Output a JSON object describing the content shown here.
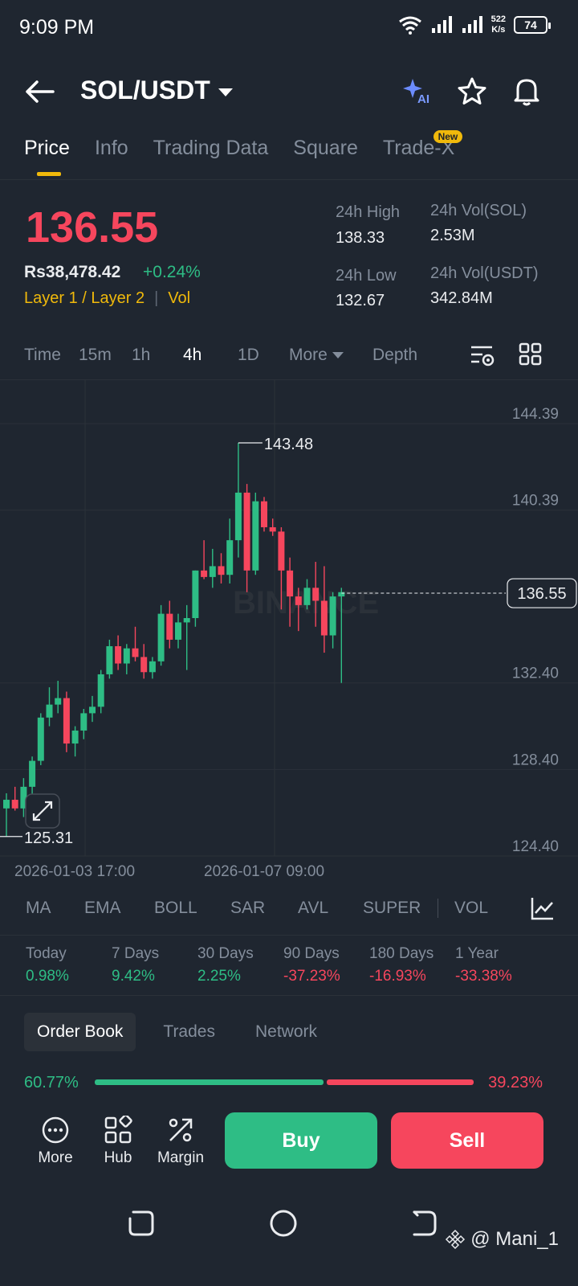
{
  "status_bar": {
    "time": "9:09 PM",
    "net_speed_value": "522",
    "net_speed_unit": "K/s",
    "battery": "74"
  },
  "header": {
    "pair": "SOL/USDT",
    "icons": [
      "back-arrow-icon",
      "ai-sparkle-icon",
      "star-icon",
      "bell-icon"
    ]
  },
  "tabs": [
    {
      "label": "Price",
      "active": true
    },
    {
      "label": "Info"
    },
    {
      "label": "Trading Data"
    },
    {
      "label": "Square"
    },
    {
      "label": "Trade-X",
      "badge": "New"
    }
  ],
  "price": {
    "last": "136.55",
    "fiat": "Rs38,478.42",
    "change": "+0.24%",
    "tag1": "Layer 1 / Layer 2",
    "tag2": "Vol",
    "high_label": "24h High",
    "high": "138.33",
    "low_label": "24h Low",
    "low": "132.67",
    "vol_sol_label": "24h Vol(SOL)",
    "vol_sol": "2.53M",
    "vol_usdt_label": "24h Vol(USDT)",
    "vol_usdt": "342.84M"
  },
  "intervals": {
    "time": "Time",
    "i15m": "15m",
    "i1h": "1h",
    "i4h": "4h",
    "i1d": "1D",
    "more": "More",
    "depth": "Depth",
    "active": "4h"
  },
  "chart_data": {
    "type": "candlestick",
    "y_ticks": [
      "144.39",
      "140.39",
      "136.55",
      "132.40",
      "128.40",
      "124.40"
    ],
    "x_ticks": [
      "2026-01-03 17:00",
      "2026-01-07 09:00"
    ],
    "high_marker": "143.48",
    "low_marker": "125.31",
    "current": "136.55",
    "watermark": "BINANCE",
    "ylim": [
      124.4,
      146.4
    ],
    "up_color": "#2ebd85",
    "down_color": "#f6465d",
    "candles": [
      [
        126.6,
        127.3,
        125.3,
        127.0
      ],
      [
        127.0,
        127.6,
        126.5,
        126.6
      ],
      [
        126.6,
        128.0,
        126.2,
        127.6
      ],
      [
        127.6,
        129.0,
        127.2,
        128.8
      ],
      [
        128.8,
        131.0,
        128.6,
        130.8
      ],
      [
        130.8,
        132.2,
        130.4,
        131.4
      ],
      [
        131.4,
        132.5,
        131.0,
        131.7
      ],
      [
        131.7,
        132.0,
        129.2,
        129.6
      ],
      [
        129.6,
        130.4,
        129.0,
        130.2
      ],
      [
        130.2,
        131.2,
        129.8,
        131.0
      ],
      [
        131.0,
        131.8,
        130.6,
        131.3
      ],
      [
        131.3,
        133.0,
        131.0,
        132.8
      ],
      [
        132.8,
        134.4,
        132.6,
        134.1
      ],
      [
        134.1,
        134.6,
        133.0,
        133.3
      ],
      [
        133.3,
        134.2,
        132.8,
        134.0
      ],
      [
        134.0,
        135.0,
        133.4,
        133.6
      ],
      [
        133.6,
        134.2,
        132.6,
        132.9
      ],
      [
        132.9,
        133.6,
        132.6,
        133.4
      ],
      [
        133.4,
        136.0,
        133.2,
        135.6
      ],
      [
        135.6,
        136.2,
        134.0,
        134.4
      ],
      [
        134.4,
        135.6,
        134.0,
        135.2
      ],
      [
        135.2,
        136.0,
        133.0,
        135.4
      ],
      [
        135.4,
        137.6,
        135.0,
        137.6
      ],
      [
        137.6,
        139.0,
        137.2,
        137.3
      ],
      [
        137.3,
        138.6,
        136.8,
        137.8
      ],
      [
        137.8,
        138.4,
        137.0,
        137.4
      ],
      [
        137.4,
        140.0,
        137.0,
        139.0
      ],
      [
        139.0,
        143.5,
        138.2,
        141.2
      ],
      [
        141.2,
        141.6,
        136.6,
        137.6
      ],
      [
        137.6,
        141.2,
        137.4,
        140.8
      ],
      [
        140.8,
        141.0,
        139.4,
        139.6
      ],
      [
        139.6,
        140.0,
        139.2,
        139.4
      ],
      [
        139.4,
        139.6,
        135.8,
        137.6
      ],
      [
        137.6,
        138.2,
        135.0,
        136.4
      ],
      [
        136.4,
        136.8,
        134.8,
        136.0
      ],
      [
        136.0,
        137.2,
        135.8,
        136.8
      ],
      [
        136.8,
        138.0,
        135.0,
        136.2
      ],
      [
        136.2,
        137.8,
        133.8,
        134.6
      ],
      [
        134.6,
        136.6,
        134.0,
        136.4
      ],
      [
        136.4,
        136.8,
        132.4,
        136.6
      ]
    ]
  },
  "indicators": [
    "MA",
    "EMA",
    "BOLL",
    "SAR",
    "AVL",
    "SUPER",
    "VOL"
  ],
  "performance": [
    {
      "label": "Today",
      "value": "0.98%",
      "dir": "up"
    },
    {
      "label": "7 Days",
      "value": "9.42%",
      "dir": "up"
    },
    {
      "label": "30 Days",
      "value": "2.25%",
      "dir": "up"
    },
    {
      "label": "90 Days",
      "value": "-37.23%",
      "dir": "down"
    },
    {
      "label": "180 Days",
      "value": "-16.93%",
      "dir": "down"
    },
    {
      "label": "1 Year",
      "value": "-33.38%",
      "dir": "down"
    }
  ],
  "orderbook": {
    "tabs": [
      "Order Book",
      "Trades",
      "Network"
    ],
    "bid_ratio_text": "60.77%",
    "ask_ratio_text": "39.23%",
    "bid_ratio": 0.6077
  },
  "actions": {
    "more": "More",
    "hub": "Hub",
    "margin": "Margin",
    "buy": "Buy",
    "sell": "Sell"
  },
  "watermark": "@ Mani_1"
}
